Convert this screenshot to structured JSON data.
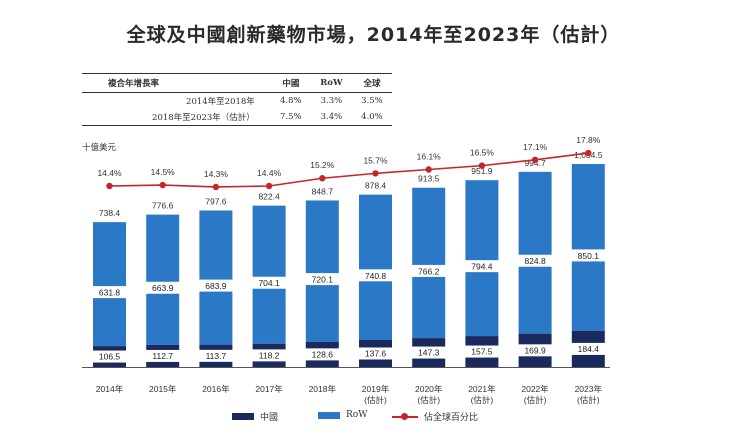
{
  "title": "全球及中國創新藥物市場，2014年至2023年（估計）",
  "cagr_table": {
    "headers": [
      "複合年增長率",
      "中國",
      "RoW",
      "全球"
    ],
    "rows": [
      [
        "2014年至2018年",
        "4.8%",
        "3.3%",
        "3.5%"
      ],
      [
        "2018年至2023年（估計）",
        "7.5%",
        "3.4%",
        "4.0%"
      ]
    ]
  },
  "colors": {
    "china": "#1b2a5e",
    "row": "#2a78c6",
    "global": "#c8242b"
  },
  "legend": {
    "china": "中國",
    "row": "RoW",
    "global": "佔全球百分比"
  },
  "chart_data": {
    "type": "bar",
    "stacked": true,
    "ylabel": "十億美元",
    "categories": [
      "2014年",
      "2015年",
      "2016年",
      "2017年",
      "2018年",
      "2019年\n(估計)",
      "2020年\n(估計)",
      "2021年\n(估計)",
      "2022年\n(估計)",
      "2023年\n(估計)"
    ],
    "series": [
      {
        "name": "中國",
        "values": [
          106.5,
          112.7,
          113.7,
          118.2,
          128.6,
          137.6,
          147.3,
          157.5,
          169.9,
          184.4
        ]
      },
      {
        "name": "RoW",
        "values": [
          631.8,
          663.9,
          683.9,
          704.1,
          720.1,
          740.8,
          766.2,
          794.4,
          824.8,
          850.1
        ]
      }
    ],
    "totals": [
      "738.4",
      "776.6",
      "797.6",
      "822.4",
      "848.7",
      "878.4",
      "913.5",
      "951.9",
      "994.7",
      "1,034.5"
    ],
    "line": {
      "name": "佔全球百分比",
      "values": [
        14.4,
        14.5,
        14.3,
        14.4,
        15.2,
        15.7,
        16.1,
        16.5,
        17.1,
        17.8
      ],
      "labels": [
        "14.4%",
        "14.5%",
        "14.3%",
        "14.4%",
        "15.2%",
        "15.7%",
        "16.1%",
        "16.5%",
        "17.1%",
        "17.8%"
      ]
    },
    "legend_position": "bottom",
    "grid": false
  }
}
